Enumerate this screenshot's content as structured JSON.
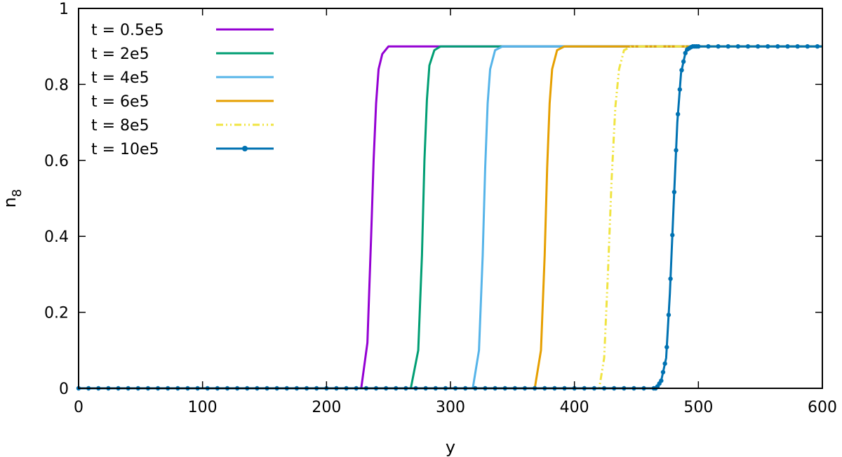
{
  "chart_data": {
    "type": "line",
    "title": "",
    "xlabel": "y",
    "ylabel": "n",
    "ylabel_subscript": "8",
    "xlim": [
      0,
      600
    ],
    "ylim": [
      0,
      1
    ],
    "x_ticks": [
      0,
      100,
      200,
      300,
      400,
      500,
      600
    ],
    "y_ticks": [
      0,
      0.2,
      0.4,
      0.6,
      0.8,
      1
    ],
    "grid": false,
    "legend_position": "top-left",
    "plateau": 0.9,
    "series": [
      {
        "name": "t = 0.5e5",
        "color": "#9400d3",
        "style": "solid",
        "x": [
          0,
          228,
          233,
          236,
          238,
          240,
          242,
          245,
          250,
          260,
          600
        ],
        "y": [
          0,
          0.0,
          0.12,
          0.4,
          0.6,
          0.75,
          0.84,
          0.88,
          0.9,
          0.9,
          0.9
        ]
      },
      {
        "name": "t = 2e5",
        "color": "#009e73",
        "style": "solid",
        "x": [
          0,
          268,
          274,
          277,
          279,
          281,
          283,
          287,
          292,
          300,
          600
        ],
        "y": [
          0,
          0.0,
          0.1,
          0.35,
          0.6,
          0.76,
          0.85,
          0.89,
          0.9,
          0.9,
          0.9
        ]
      },
      {
        "name": "t = 4e5",
        "color": "#56b4e9",
        "style": "solid",
        "x": [
          0,
          318,
          323,
          326,
          328,
          330,
          332,
          336,
          342,
          350,
          600
        ],
        "y": [
          0,
          0.0,
          0.1,
          0.35,
          0.58,
          0.75,
          0.84,
          0.89,
          0.9,
          0.9,
          0.9
        ]
      },
      {
        "name": "t = 6e5",
        "color": "#e69f00",
        "style": "solid",
        "x": [
          0,
          368,
          373,
          376,
          378,
          380,
          382,
          386,
          392,
          400,
          600
        ],
        "y": [
          0,
          0.0,
          0.1,
          0.35,
          0.58,
          0.75,
          0.84,
          0.89,
          0.9,
          0.9,
          0.9
        ]
      },
      {
        "name": "t = 8e5",
        "color": "#f0e442",
        "style": "dashdot",
        "x": [
          0,
          420,
          424,
          427,
          430,
          433,
          436,
          440,
          446,
          455,
          600
        ],
        "y": [
          0,
          0.0,
          0.08,
          0.3,
          0.55,
          0.74,
          0.84,
          0.89,
          0.9,
          0.9,
          0.9
        ]
      },
      {
        "name": "t = 10e5",
        "color": "#0072b2",
        "style": "solid-points",
        "x": [
          0,
          466,
          470,
          474,
          477,
          480,
          483,
          486,
          490,
          495,
          500,
          600
        ],
        "y": [
          0,
          0.0,
          0.02,
          0.08,
          0.25,
          0.48,
          0.7,
          0.83,
          0.89,
          0.9,
          0.9,
          0.9
        ]
      }
    ]
  }
}
